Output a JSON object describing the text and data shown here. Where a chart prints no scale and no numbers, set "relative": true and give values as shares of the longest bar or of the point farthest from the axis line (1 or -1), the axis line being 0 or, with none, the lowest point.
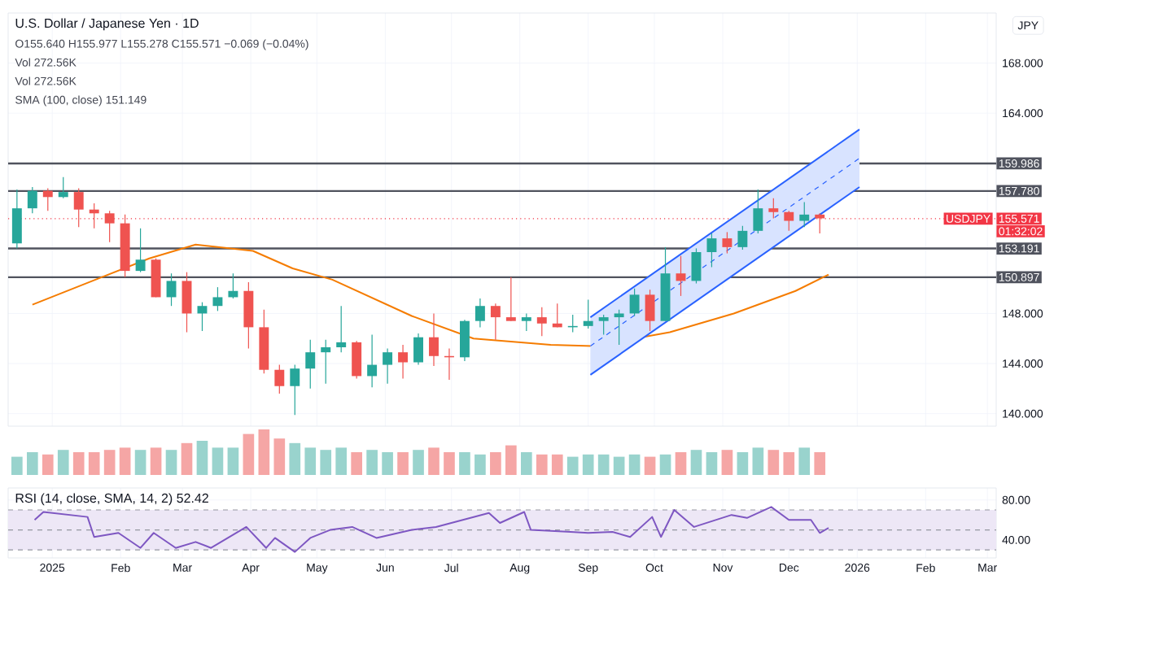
{
  "chart_data": [
    {
      "type": "candlestick",
      "title": "U.S. Dollar / Japanese Yen · 1D",
      "ylabel": "JPY",
      "annotations": [
        "O155.640 H155.977 L155.278 C155.571 −0.069 (−0.04%)",
        "Vol 272.56K",
        "Vol 272.56K",
        "SMA (100, close) 151.149",
        {
          "text": "USDJPY",
          "y": 155.571
        },
        "01:32:02"
      ],
      "xlim": [
        "2024-12-12",
        "2026-03-05"
      ],
      "ylim": [
        139,
        172
      ],
      "xticks": [
        {
          "value": "2025-01-01",
          "label": null
        },
        {
          "value": "2025-02-01",
          "label": null
        },
        {
          "value": "2025-03-01",
          "label": null
        },
        {
          "value": "2025-04-01",
          "label": null
        },
        {
          "value": "2025-05-01",
          "label": null
        },
        {
          "value": "2025-06-01",
          "label": null
        },
        {
          "value": "2025-07-01",
          "label": null
        },
        {
          "value": "2025-08-01",
          "label": null
        },
        {
          "value": "2025-09-01",
          "label": null
        },
        {
          "value": "2025-10-01",
          "label": null
        },
        {
          "value": "2025-11-01",
          "label": null
        },
        {
          "value": "2025-12-01",
          "label": null
        },
        {
          "value": "2026-01-01",
          "label": null
        },
        {
          "value": "2026-02-01",
          "label": null
        },
        {
          "value": "2026-03-01",
          "label": null
        }
      ],
      "yticks": [
        {
          "value": 140,
          "label": "140.000"
        },
        {
          "value": 144,
          "label": "144.000"
        },
        {
          "value": 148,
          "label": "148.000"
        },
        {
          "value": 164,
          "label": "164.000"
        },
        {
          "value": 168,
          "label": "168.000"
        }
      ],
      "tick_labels": "y",
      "grid": true,
      "ref_lines": [
        {
          "axis": "y",
          "value": 159.986,
          "label": "159.986",
          "color": "#50535e",
          "line_style": "solid"
        },
        {
          "axis": "y",
          "value": 157.78,
          "label": "157.780",
          "color": "#50535e",
          "line_style": "solid"
        },
        {
          "axis": "y",
          "value": 155.571,
          "label": "155.571",
          "color": "#f23645",
          "line_style": "dotted"
        },
        {
          "axis": "y",
          "value": 153.191,
          "label": "153.191",
          "color": "#50535e",
          "line_style": "solid"
        },
        {
          "axis": "y",
          "value": 150.897,
          "label": "150.897",
          "color": "#50535e",
          "line_style": "solid"
        }
      ],
      "series": [
        {
          "type": "candlestick",
          "x": [
            "2024-12-16",
            "2024-12-23",
            "2024-12-30",
            "2025-01-06",
            "2025-01-13",
            "2025-01-20",
            "2025-01-27",
            "2025-02-03",
            "2025-02-10",
            "2025-02-17",
            "2025-02-24",
            "2025-03-03",
            "2025-03-10",
            "2025-03-17",
            "2025-03-24",
            "2025-03-31",
            "2025-04-07",
            "2025-04-14",
            "2025-04-21",
            "2025-04-28",
            "2025-05-05",
            "2025-05-12",
            "2025-05-19",
            "2025-05-26",
            "2025-06-02",
            "2025-06-09",
            "2025-06-16",
            "2025-06-23",
            "2025-06-30",
            "2025-07-07",
            "2025-07-14",
            "2025-07-21",
            "2025-07-28",
            "2025-08-04",
            "2025-08-11",
            "2025-08-18",
            "2025-08-25",
            "2025-09-01",
            "2025-09-08",
            "2025-09-15",
            "2025-09-22",
            "2025-09-29",
            "2025-10-06",
            "2025-10-13",
            "2025-10-20",
            "2025-10-27",
            "2025-11-03",
            "2025-11-10",
            "2025-11-17",
            "2025-11-24",
            "2025-12-01",
            "2025-12-08",
            "2025-12-15"
          ],
          "ohlc": [
            [
              153.6,
              157.9,
              153.2,
              156.4
            ],
            [
              156.4,
              158.1,
              156.0,
              157.8
            ],
            [
              157.8,
              158.0,
              156.2,
              157.3
            ],
            [
              157.3,
              158.9,
              157.2,
              157.7
            ],
            [
              157.7,
              158.0,
              154.9,
              156.3
            ],
            [
              156.3,
              156.8,
              154.8,
              156.0
            ],
            [
              156.0,
              156.2,
              153.7,
              155.2
            ],
            [
              155.2,
              155.9,
              150.9,
              151.4
            ],
            [
              151.4,
              154.8,
              151.3,
              152.3
            ],
            [
              152.3,
              152.4,
              149.3,
              149.3
            ],
            [
              149.3,
              151.2,
              148.6,
              150.6
            ],
            [
              150.6,
              151.3,
              146.5,
              148.0
            ],
            [
              148.0,
              148.9,
              146.6,
              148.6
            ],
            [
              148.6,
              150.1,
              148.2,
              149.3
            ],
            [
              149.3,
              151.2,
              149.2,
              149.8
            ],
            [
              149.8,
              150.5,
              145.2,
              146.9
            ],
            [
              146.9,
              148.3,
              143.2,
              143.5
            ],
            [
              143.5,
              143.9,
              141.6,
              142.2
            ],
            [
              142.2,
              143.9,
              139.9,
              143.6
            ],
            [
              143.6,
              145.9,
              142.0,
              144.9
            ],
            [
              144.9,
              145.9,
              142.4,
              145.3
            ],
            [
              145.3,
              148.6,
              144.9,
              145.7
            ],
            [
              145.7,
              145.8,
              142.8,
              143.0
            ],
            [
              143.0,
              146.3,
              142.1,
              143.9
            ],
            [
              143.9,
              145.2,
              142.4,
              144.9
            ],
            [
              144.9,
              145.5,
              142.8,
              144.1
            ],
            [
              144.1,
              146.4,
              143.9,
              146.1
            ],
            [
              146.1,
              148.0,
              143.8,
              144.6
            ],
            [
              144.6,
              145.2,
              142.7,
              144.5
            ],
            [
              144.5,
              147.5,
              144.2,
              147.4
            ],
            [
              147.4,
              149.2,
              146.9,
              148.6
            ],
            [
              148.6,
              148.8,
              145.9,
              147.7
            ],
            [
              147.7,
              150.9,
              147.4,
              147.4
            ],
            [
              147.4,
              148.0,
              146.6,
              147.7
            ],
            [
              147.7,
              148.5,
              146.2,
              147.2
            ],
            [
              147.2,
              148.8,
              146.9,
              146.9
            ],
            [
              146.9,
              147.9,
              146.5,
              147.0
            ],
            [
              147.0,
              149.1,
              146.8,
              147.4
            ],
            [
              147.4,
              147.9,
              146.3,
              147.7
            ],
            [
              147.7,
              148.3,
              145.5,
              148.0
            ],
            [
              148.0,
              150.0,
              147.8,
              149.5
            ],
            [
              149.5,
              149.9,
              146.6,
              147.4
            ],
            [
              147.4,
              153.3,
              147.4,
              151.2
            ],
            [
              151.2,
              152.6,
              149.4,
              150.6
            ],
            [
              150.6,
              153.2,
              150.4,
              152.9
            ],
            [
              152.9,
              154.4,
              151.7,
              154.0
            ],
            [
              154.0,
              154.5,
              152.8,
              153.3
            ],
            [
              153.3,
              155.0,
              153.1,
              154.6
            ],
            [
              154.6,
              157.9,
              154.4,
              156.4
            ],
            [
              156.4,
              157.2,
              155.6,
              156.1
            ],
            [
              156.1,
              156.2,
              154.6,
              155.4
            ],
            [
              155.4,
              156.9,
              154.9,
              155.9
            ],
            [
              155.9,
              156.0,
              154.4,
              155.6
            ]
          ],
          "colors": [
            "#26a69a",
            "#26a69a",
            "#ef5350",
            "#26a69a",
            "#ef5350",
            "#ef5350",
            "#ef5350",
            "#ef5350",
            "#26a69a",
            "#ef5350",
            "#26a69a",
            "#ef5350",
            "#26a69a",
            "#26a69a",
            "#26a69a",
            "#ef5350",
            "#ef5350",
            "#ef5350",
            "#26a69a",
            "#26a69a",
            "#26a69a",
            "#26a69a",
            "#ef5350",
            "#26a69a",
            "#26a69a",
            "#ef5350",
            "#26a69a",
            "#ef5350",
            "#ef5350",
            "#26a69a",
            "#26a69a",
            "#ef5350",
            "#ef5350",
            "#26a69a",
            "#ef5350",
            "#ef5350",
            "#26a69a",
            "#26a69a",
            "#26a69a",
            "#26a69a",
            "#26a69a",
            "#ef5350",
            "#26a69a",
            "#ef5350",
            "#26a69a",
            "#26a69a",
            "#ef5350",
            "#26a69a",
            "#26a69a",
            "#ef5350",
            "#ef5350",
            "#26a69a",
            "#ef5350"
          ]
        },
        {
          "type": "line",
          "color": "#f57c00",
          "x": [
            "2024-12-23",
            "2025-01-22",
            "2025-02-14",
            "2025-03-07",
            "2025-04-02",
            "2025-04-20",
            "2025-05-08",
            "2025-06-13",
            "2025-07-11",
            "2025-08-15",
            "2025-09-03",
            "2025-10-08",
            "2025-11-06",
            "2025-12-04",
            "2025-12-19"
          ],
          "values": [
            148.7,
            150.8,
            152.4,
            153.5,
            153.0,
            151.6,
            150.7,
            147.8,
            146.0,
            145.5,
            145.4,
            146.5,
            148.0,
            149.8,
            151.1
          ]
        },
        {
          "type": "line",
          "color": "#2962ff",
          "line_style": "dashed",
          "x": [
            "2025-09-02",
            "2026-01-02"
          ],
          "values": [
            145.4,
            160.4
          ],
          "lower": [
            143.1,
            158.1
          ],
          "upper": [
            147.7,
            162.7
          ]
        },
        {
          "type": "line",
          "color": "#2962ff",
          "x": [
            "2025-09-02",
            "2026-01-02"
          ],
          "values": [
            147.7,
            162.7
          ]
        },
        {
          "type": "line",
          "color": "#2962ff",
          "x": [
            "2025-09-02",
            "2026-01-02"
          ],
          "values": [
            143.1,
            158.1
          ]
        }
      ]
    },
    {
      "type": "bar",
      "relative": true,
      "tick_labels": false,
      "categories": [
        null,
        null,
        null,
        null,
        null,
        null,
        null,
        null,
        null,
        null,
        null,
        null,
        null,
        null,
        null,
        null,
        null,
        null,
        null,
        null,
        null,
        null,
        null,
        null,
        null,
        null,
        null,
        null,
        null,
        null,
        null,
        null,
        null,
        null,
        null,
        null,
        null,
        null,
        null,
        null,
        null,
        null,
        null,
        null,
        null,
        null,
        null,
        null,
        null,
        null,
        null,
        null,
        null
      ],
      "values": [
        0.4,
        0.5,
        0.45,
        0.55,
        0.5,
        0.5,
        0.55,
        0.6,
        0.55,
        0.6,
        0.55,
        0.7,
        0.75,
        0.6,
        0.6,
        0.9,
        1.0,
        0.8,
        0.7,
        0.6,
        0.55,
        0.6,
        0.5,
        0.55,
        0.5,
        0.5,
        0.55,
        0.6,
        0.5,
        0.5,
        0.45,
        0.5,
        0.65,
        0.5,
        0.45,
        0.45,
        0.4,
        0.45,
        0.45,
        0.4,
        0.45,
        0.4,
        0.45,
        0.5,
        0.55,
        0.5,
        0.55,
        0.5,
        0.6,
        0.55,
        0.5,
        0.6,
        0.5
      ],
      "colors": [
        "#99d3cd",
        "#99d3cd",
        "#f5a6a5",
        "#99d3cd",
        "#f5a6a5",
        "#f5a6a5",
        "#f5a6a5",
        "#f5a6a5",
        "#99d3cd",
        "#f5a6a5",
        "#99d3cd",
        "#f5a6a5",
        "#99d3cd",
        "#99d3cd",
        "#99d3cd",
        "#f5a6a5",
        "#f5a6a5",
        "#f5a6a5",
        "#99d3cd",
        "#99d3cd",
        "#99d3cd",
        "#99d3cd",
        "#f5a6a5",
        "#99d3cd",
        "#99d3cd",
        "#f5a6a5",
        "#99d3cd",
        "#f5a6a5",
        "#f5a6a5",
        "#99d3cd",
        "#99d3cd",
        "#f5a6a5",
        "#f5a6a5",
        "#99d3cd",
        "#f5a6a5",
        "#f5a6a5",
        "#99d3cd",
        "#99d3cd",
        "#99d3cd",
        "#99d3cd",
        "#99d3cd",
        "#f5a6a5",
        "#99d3cd",
        "#f5a6a5",
        "#99d3cd",
        "#99d3cd",
        "#f5a6a5",
        "#99d3cd",
        "#99d3cd",
        "#f5a6a5",
        "#f5a6a5",
        "#99d3cd",
        "#f5a6a5"
      ]
    },
    {
      "type": "line",
      "title": "RSI (14, close, SMA, 14, 2) 52.42",
      "color": "#7e57c2",
      "grid": true,
      "xlim": [
        "2024-12-12",
        "2026-03-05"
      ],
      "ylim": [
        22,
        92
      ],
      "xticks": [
        {
          "value": "2025-01-01",
          "label": "2025"
        },
        {
          "value": "2025-02-01",
          "label": "Feb"
        },
        {
          "value": "2025-03-01",
          "label": "Mar"
        },
        {
          "value": "2025-04-01",
          "label": "Apr"
        },
        {
          "value": "2025-05-01",
          "label": "May"
        },
        {
          "value": "2025-06-01",
          "label": "Jun"
        },
        {
          "value": "2025-07-01",
          "label": "Jul"
        },
        {
          "value": "2025-08-01",
          "label": "Aug"
        },
        {
          "value": "2025-09-01",
          "label": "Sep"
        },
        {
          "value": "2025-10-01",
          "label": "Oct"
        },
        {
          "value": "2025-11-01",
          "label": "Nov"
        },
        {
          "value": "2025-12-01",
          "label": "Dec"
        },
        {
          "value": "2026-01-01",
          "label": "2026"
        },
        {
          "value": "2026-02-01",
          "label": "Feb"
        },
        {
          "value": "2026-03-01",
          "label": "Mar"
        }
      ],
      "yticks": [
        {
          "value": 40,
          "label": "40.00"
        },
        {
          "value": 80,
          "label": "80.00"
        }
      ],
      "bands": [
        {
          "axis": "y",
          "from": 30,
          "to": 70,
          "color": "#ede7f6"
        }
      ],
      "ref_lines": [
        {
          "axis": "y",
          "value": 70,
          "color": "#9598a1",
          "line_style": "dashed"
        },
        {
          "axis": "y",
          "value": 50,
          "color": "#9598a1",
          "line_style": "dashed"
        },
        {
          "axis": "y",
          "value": 30,
          "color": "#9598a1",
          "line_style": "dashed"
        }
      ],
      "x": [
        "2024-12-24",
        "2024-12-28",
        "2025-01-17",
        "2025-01-20",
        "2025-01-31",
        "2025-02-10",
        "2025-02-16",
        "2025-02-26",
        "2025-03-07",
        "2025-03-14",
        "2025-03-30",
        "2025-04-08",
        "2025-04-12",
        "2025-04-21",
        "2025-04-28",
        "2025-05-07",
        "2025-05-17",
        "2025-05-28",
        "2025-06-13",
        "2025-06-24",
        "2025-07-18",
        "2025-07-23",
        "2025-08-03",
        "2025-08-06",
        "2025-08-24",
        "2025-09-01",
        "2025-09-12",
        "2025-09-20",
        "2025-09-30",
        "2025-10-04",
        "2025-10-10",
        "2025-10-19",
        "2025-11-05",
        "2025-11-12",
        "2025-11-23",
        "2025-12-01",
        "2025-12-11",
        "2025-12-15",
        "2025-12-19"
      ],
      "values": [
        60,
        68,
        63,
        43,
        47,
        32,
        47,
        32,
        38,
        32,
        53,
        32,
        42,
        28,
        42,
        50,
        53,
        42,
        50,
        53,
        67,
        57,
        68,
        50,
        48,
        47,
        48,
        43,
        63,
        43,
        70,
        53,
        65,
        62,
        73,
        60,
        60,
        47,
        52
      ]
    }
  ]
}
